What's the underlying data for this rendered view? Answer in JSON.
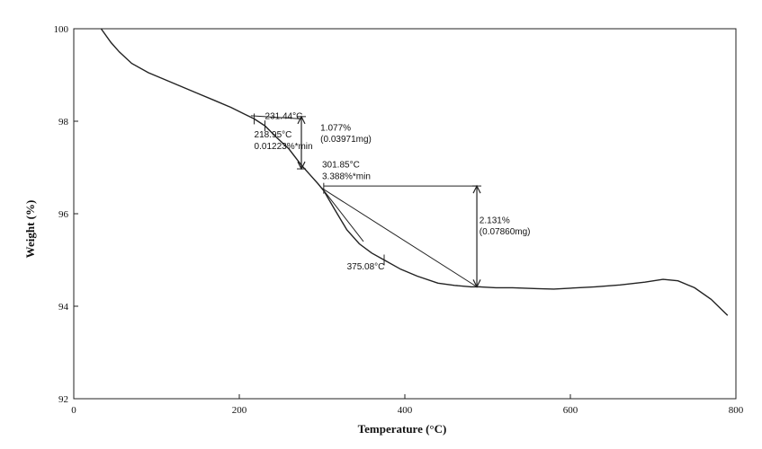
{
  "chart_data": {
    "type": "line",
    "title": "",
    "xlabel": "Temperature (°C)",
    "ylabel": "Weight (%)",
    "xlim": [
      0,
      800
    ],
    "ylim": [
      92,
      100
    ],
    "xticks": [
      "0",
      "200",
      "400",
      "600",
      "800"
    ],
    "yticks": [
      "92",
      "94",
      "96",
      "98",
      "100"
    ],
    "grid": false,
    "line_color": "#222222",
    "series": [
      {
        "x": [
          33,
          45,
          55,
          70,
          90,
          110,
          130,
          150,
          170,
          190,
          210,
          218,
          231,
          245,
          260,
          275,
          285,
          295,
          302,
          315,
          330,
          345,
          360,
          375,
          395,
          415,
          440,
          460,
          480,
          490,
          510,
          530,
          560,
          580,
          600,
          630,
          660,
          690,
          712,
          730,
          750,
          770,
          790
        ],
        "y": [
          100,
          99.7,
          99.5,
          99.25,
          99.05,
          98.9,
          98.75,
          98.6,
          98.45,
          98.3,
          98.12,
          98.05,
          97.9,
          97.65,
          97.4,
          97.05,
          96.85,
          96.65,
          96.5,
          96.1,
          95.65,
          95.35,
          95.15,
          95.0,
          94.8,
          94.65,
          94.5,
          94.45,
          94.42,
          94.42,
          94.4,
          94.4,
          94.38,
          94.37,
          94.39,
          94.42,
          94.46,
          94.52,
          94.58,
          94.55,
          94.4,
          94.15,
          93.8
        ]
      }
    ],
    "annotations": [
      {
        "text": "231.44°C",
        "x": 231,
        "y": 98.05
      },
      {
        "text": "218.95°C",
        "x": 218,
        "y": 97.65
      },
      {
        "text": "0.01223%*min",
        "x": 218,
        "y": 97.4
      },
      {
        "text": "1.077%",
        "x": 298,
        "y": 97.8
      },
      {
        "text": "(0.03971mg)",
        "x": 298,
        "y": 97.55
      },
      {
        "text": "301.85°C",
        "x": 300,
        "y": 97.0
      },
      {
        "text": "3.388%*min",
        "x": 300,
        "y": 96.75
      },
      {
        "text": "2.131%",
        "x": 490,
        "y": 95.8
      },
      {
        "text": "(0.07860mg)",
        "x": 490,
        "y": 95.55
      },
      {
        "text": "375.08°C",
        "x": 330,
        "y": 94.8
      }
    ],
    "step_markers": [
      {
        "x": 275,
        "y_top": 98.1,
        "y_bottom": 96.97
      },
      {
        "x": 487,
        "y_top": 96.6,
        "y_bottom": 94.42
      }
    ],
    "onset_tangents": [
      {
        "x1": 214,
        "y1": 98.12,
        "x2": 275,
        "y2": 98.05
      },
      {
        "x1": 302,
        "y1": 96.6,
        "x2": 487,
        "y2": 96.6
      },
      {
        "x1": 300,
        "y1": 96.55,
        "x2": 487,
        "y2": 94.42
      },
      {
        "x1": 300,
        "y1": 96.55,
        "x2": 350,
        "y2": 95.4
      }
    ]
  }
}
